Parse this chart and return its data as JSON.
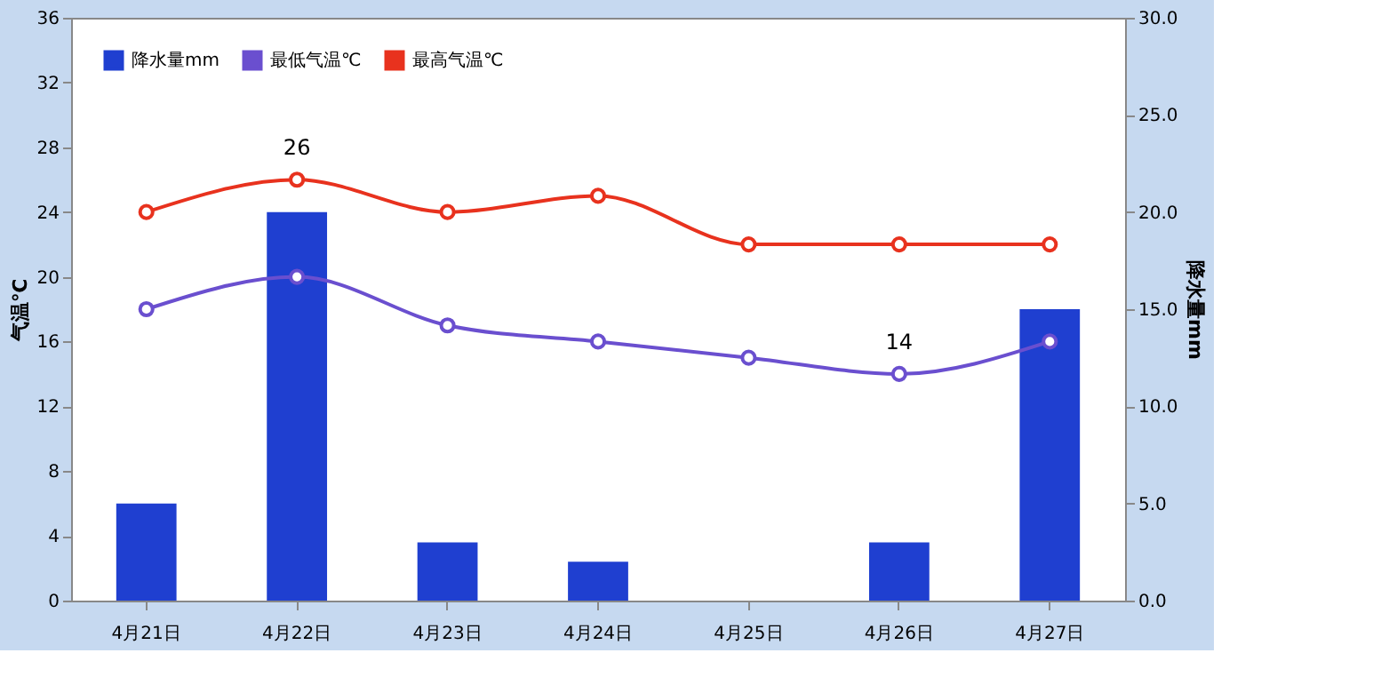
{
  "chart_data": {
    "type": "bar",
    "categories": [
      "4月21日",
      "4月22日",
      "4月23日",
      "4月24日",
      "4月25日",
      "4月26日",
      "4月27日"
    ],
    "ylabel": "气温℃",
    "y2label": "降水量mm",
    "series": [
      {
        "name": "降水量mm",
        "axis": "y2",
        "color": "#1f3fd0",
        "values": [
          5,
          20,
          3,
          2,
          0,
          3,
          15
        ]
      },
      {
        "name": "最低气温℃",
        "type": "line",
        "color": "#6a4fcf",
        "values": [
          18,
          20,
          17,
          16,
          15,
          14,
          16
        ],
        "value_labels": [
          null,
          null,
          null,
          null,
          null,
          "14",
          null
        ]
      },
      {
        "name": "最高气温℃",
        "type": "line",
        "color": "#e8321e",
        "values": [
          24,
          26,
          24,
          25,
          22,
          22,
          22
        ],
        "value_labels": [
          null,
          "26",
          null,
          null,
          null,
          null,
          null
        ]
      }
    ],
    "ylim": [
      0,
      36
    ],
    "yticks": [
      0,
      4,
      8,
      12,
      16,
      20,
      24,
      28,
      32,
      36
    ],
    "y2lim": [
      0,
      30
    ],
    "y2ticks": [
      {
        "value": 0,
        "label": "0.0"
      },
      {
        "value": 5,
        "label": "5.0"
      },
      {
        "value": 10,
        "label": "10.0"
      },
      {
        "value": 15,
        "label": "15.0"
      },
      {
        "value": 20,
        "label": "20.0"
      },
      {
        "value": 25,
        "label": "25.0"
      },
      {
        "value": 30,
        "label": "30.0"
      }
    ],
    "grid": false,
    "legend": "top left",
    "marker": "circle",
    "line_style": "solid"
  }
}
